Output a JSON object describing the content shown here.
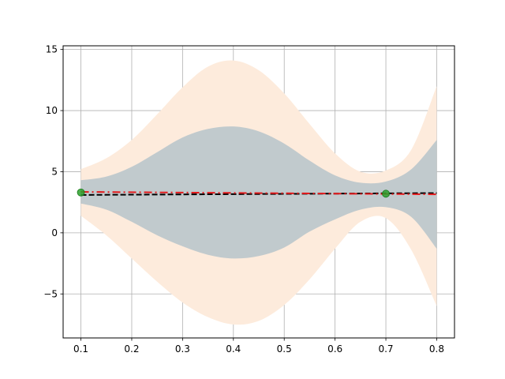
{
  "chart_data": {
    "type": "line",
    "title": "",
    "xlabel": "",
    "ylabel": "",
    "xlim": [
      0.065,
      0.835
    ],
    "ylim": [
      -8.6,
      15.3
    ],
    "grid": true,
    "x_ticks": [
      {
        "value": 0.1,
        "label": "0.1"
      },
      {
        "value": 0.2,
        "label": "0.2"
      },
      {
        "value": 0.3,
        "label": "0.3"
      },
      {
        "value": 0.4,
        "label": "0.4"
      },
      {
        "value": 0.5,
        "label": "0.5"
      },
      {
        "value": 0.6,
        "label": "0.6"
      },
      {
        "value": 0.7,
        "label": "0.7"
      },
      {
        "value": 0.8,
        "label": "0.8"
      }
    ],
    "y_ticks": [
      {
        "value": -5,
        "label": "−5"
      },
      {
        "value": 0,
        "label": "0"
      },
      {
        "value": 5,
        "label": "5"
      },
      {
        "value": 10,
        "label": "10"
      },
      {
        "value": 15,
        "label": "15"
      }
    ],
    "x": [
      0.1,
      0.15,
      0.2,
      0.25,
      0.3,
      0.35,
      0.4,
      0.45,
      0.5,
      0.55,
      0.6,
      0.65,
      0.7,
      0.75,
      0.8
    ],
    "bands": [
      {
        "color": "#fdebdc",
        "lower": [
          1.4,
          -0.2,
          -2.1,
          -4.0,
          -5.7,
          -6.9,
          -7.5,
          -7.2,
          -5.9,
          -3.8,
          -1.3,
          0.9,
          1.2,
          -1.4,
          -6.0
        ],
        "upper": [
          5.2,
          6.1,
          7.6,
          9.7,
          11.9,
          13.6,
          14.1,
          13.3,
          11.4,
          8.9,
          6.5,
          5.0,
          5.1,
          6.8,
          12.0
        ]
      },
      {
        "color": "#c1cacd",
        "lower": [
          2.4,
          1.9,
          0.9,
          -0.2,
          -1.1,
          -1.8,
          -2.1,
          -1.9,
          -1.2,
          0.1,
          1.1,
          1.9,
          2.1,
          1.3,
          -1.3
        ],
        "upper": [
          4.3,
          4.6,
          5.4,
          6.6,
          7.8,
          8.5,
          8.7,
          8.3,
          7.3,
          5.9,
          4.7,
          4.1,
          4.2,
          5.2,
          7.6
        ]
      }
    ],
    "lines": [
      {
        "color": "#000000",
        "dash": "dashed",
        "x": [
          0.1,
          0.8
        ],
        "y": [
          3.1,
          3.25
        ]
      },
      {
        "color": "#e41a1c",
        "dash": "dashdot",
        "x": [
          0.1,
          0.8
        ],
        "y": [
          3.35,
          3.15
        ]
      }
    ],
    "points": {
      "color": "#2ca02c",
      "x": [
        0.1,
        0.7
      ],
      "y": [
        3.3,
        3.2
      ]
    }
  }
}
